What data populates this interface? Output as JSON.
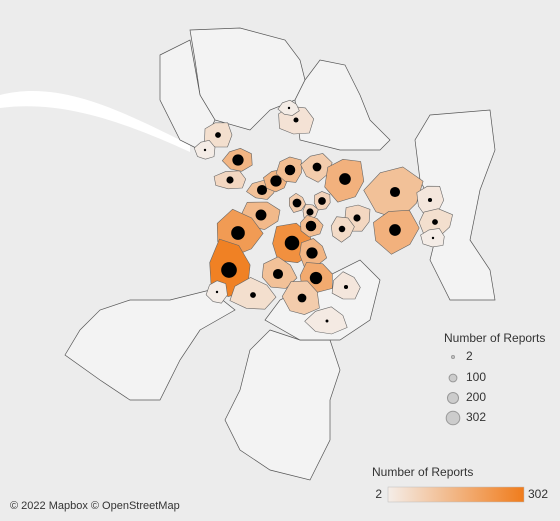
{
  "map": {
    "attribution": "© 2022 Mapbox © OpenStreetMap",
    "size_legend": {
      "title": "Number of Reports",
      "ticks": [
        2,
        100,
        200,
        302
      ]
    },
    "color_legend": {
      "title": "Number of Reports",
      "range": [
        2,
        302
      ],
      "colors": [
        "#f4ede8",
        "#f07c1c"
      ]
    },
    "districts": [
      40,
      150,
      60,
      120,
      150,
      130,
      90,
      160,
      120,
      20,
      40,
      160,
      60,
      50,
      70,
      60,
      90,
      140,
      220,
      250,
      130,
      150,
      290,
      120,
      180,
      40,
      90,
      20,
      10,
      30,
      5,
      5,
      5,
      5
    ]
  }
}
